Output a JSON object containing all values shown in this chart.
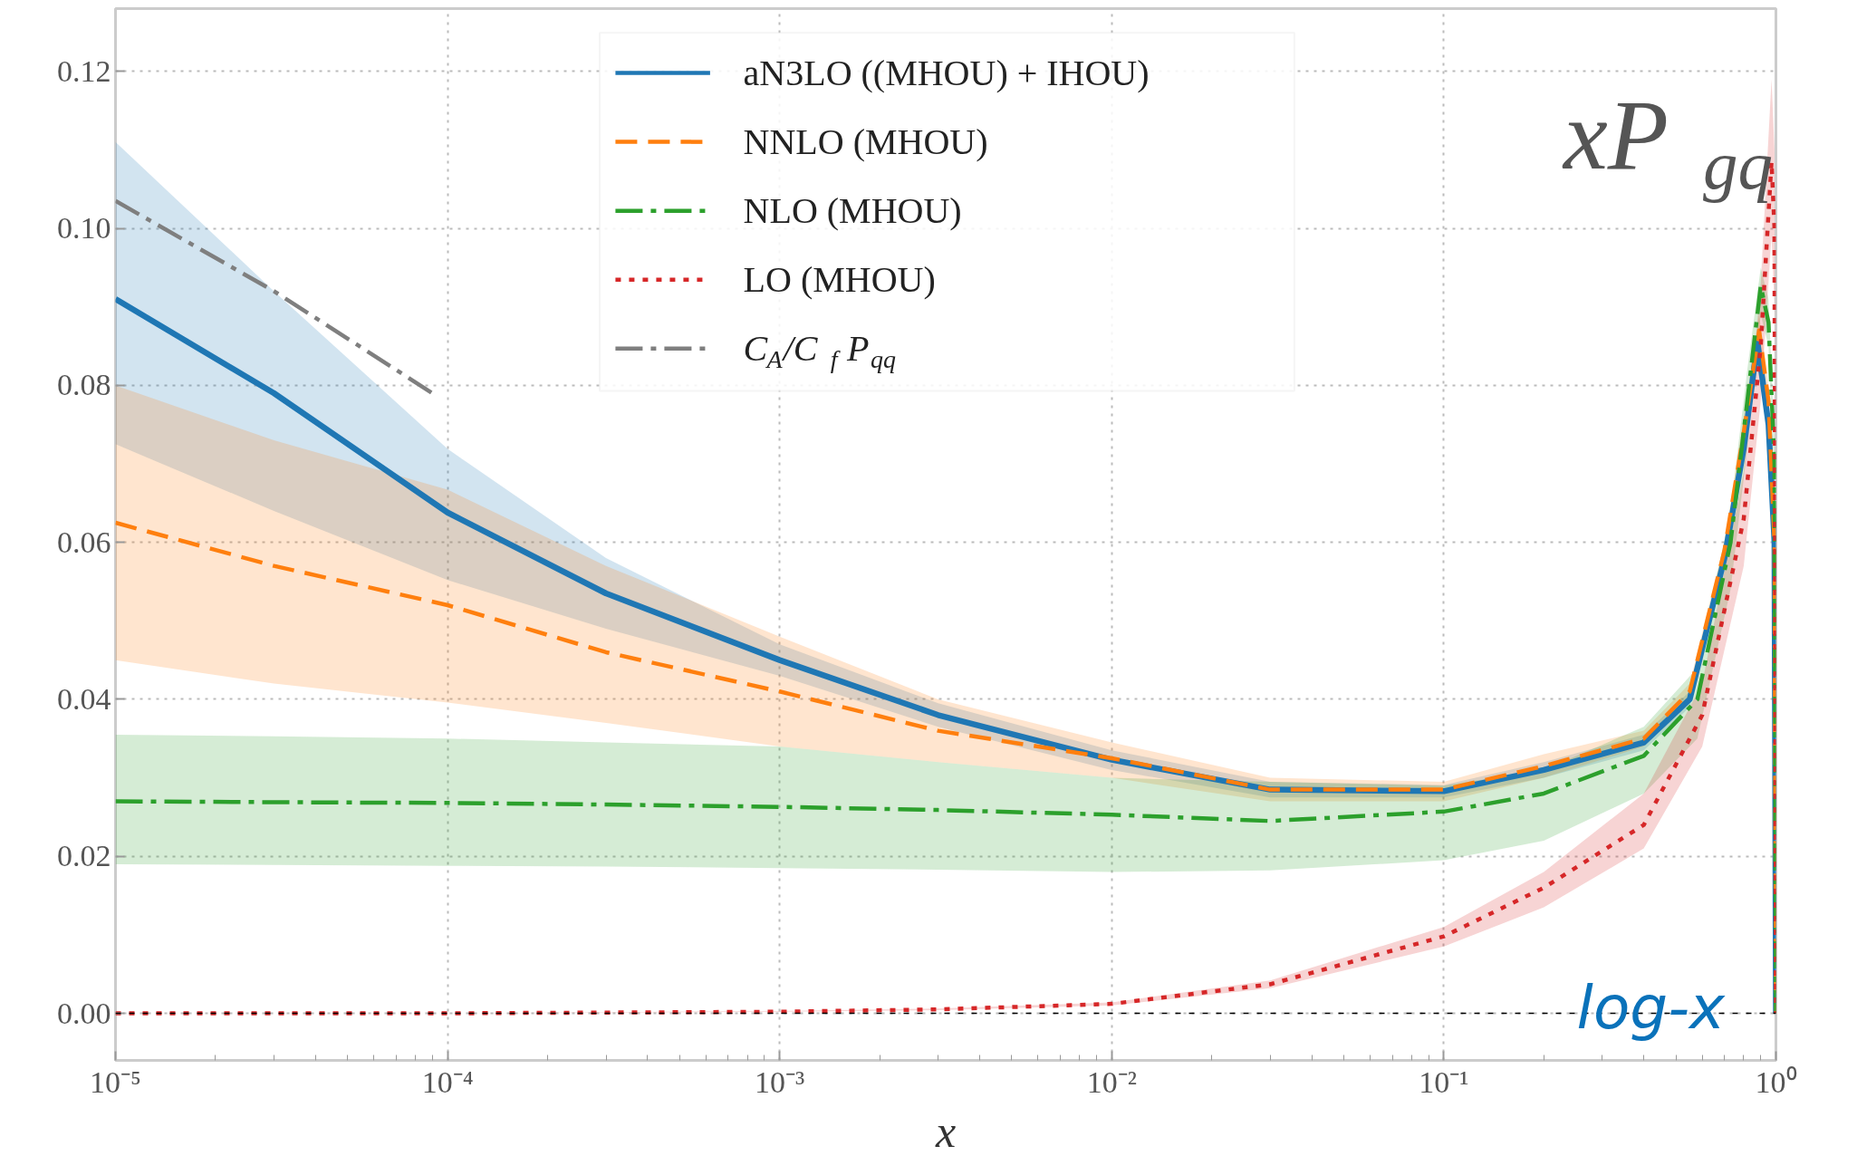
{
  "chart_data": {
    "type": "line",
    "xlabel": "x",
    "annotations": [
      "xP$_{gq}$",
      "log-x"
    ],
    "log": "x",
    "grid": true,
    "legend": "top",
    "xlim": [
      1e-05,
      1
    ],
    "ylim": [
      -0.006,
      0.128
    ],
    "xticks": [
      {
        "value": 1e-05,
        "label": "10⁻⁵"
      },
      {
        "value": 0.0001,
        "label": "10⁻⁴"
      },
      {
        "value": 0.001,
        "label": "10⁻³"
      },
      {
        "value": 0.01,
        "label": "10⁻²"
      },
      {
        "value": 0.1,
        "label": "10⁻¹"
      },
      {
        "value": 1,
        "label": "10⁰"
      }
    ],
    "yticks": [
      {
        "value": 0,
        "label": "0.00"
      },
      {
        "value": 0.02,
        "label": "0.02"
      },
      {
        "value": 0.04,
        "label": "0.04"
      },
      {
        "value": 0.06,
        "label": "0.06"
      },
      {
        "value": 0.08,
        "label": "0.08"
      },
      {
        "value": 0.1,
        "label": "0.10"
      },
      {
        "value": 0.12,
        "label": "0.12"
      }
    ],
    "ref_lines": [
      {
        "axis": "y",
        "value": 0,
        "color": "#000000",
        "line_style": "dotted"
      }
    ],
    "series": [
      {
        "name": "aN3LO ((MHOU) + IHOU)",
        "color": "#1f77b4",
        "line_style": "solid",
        "x": [
          1e-05,
          3e-05,
          0.0001,
          0.0003,
          0.001,
          0.003,
          0.01,
          0.03,
          0.1,
          0.2,
          0.4,
          0.55,
          0.7,
          0.8,
          0.88,
          0.95,
          0.99,
          1.0
        ],
        "values": [
          0.091,
          0.079,
          0.0638,
          0.0535,
          0.045,
          0.038,
          0.0323,
          0.0285,
          0.0283,
          0.031,
          0.0345,
          0.04,
          0.058,
          0.072,
          0.0855,
          0.075,
          0.06,
          0.0
        ],
        "lower": [
          0.0725,
          0.064,
          0.0552,
          0.049,
          0.043,
          0.0365,
          0.031,
          0.0275,
          0.0275,
          0.03,
          0.0335,
          0.039,
          0.057,
          0.071,
          0.084,
          0.073,
          0.058,
          0.0
        ],
        "upper": [
          0.111,
          0.092,
          0.0719,
          0.058,
          0.047,
          0.0395,
          0.0335,
          0.0295,
          0.0291,
          0.032,
          0.0355,
          0.041,
          0.059,
          0.073,
          0.087,
          0.077,
          0.062,
          0.0
        ]
      },
      {
        "name": "NNLO (MHOU)",
        "color": "#ff7f0e",
        "line_style": "dashed",
        "x": [
          1e-05,
          3e-05,
          0.0001,
          0.0003,
          0.001,
          0.003,
          0.01,
          0.03,
          0.1,
          0.2,
          0.4,
          0.55,
          0.7,
          0.8,
          0.89,
          0.95,
          0.99,
          1.0
        ],
        "values": [
          0.0625,
          0.057,
          0.052,
          0.046,
          0.041,
          0.036,
          0.0325,
          0.0285,
          0.0285,
          0.0315,
          0.035,
          0.041,
          0.059,
          0.074,
          0.087,
          0.078,
          0.06,
          0.0
        ],
        "lower": [
          0.045,
          0.042,
          0.0396,
          0.037,
          0.034,
          0.032,
          0.03,
          0.027,
          0.027,
          0.03,
          0.034,
          0.04,
          0.058,
          0.072,
          0.085,
          0.076,
          0.058,
          0.0
        ],
        "upper": [
          0.08,
          0.073,
          0.0667,
          0.057,
          0.048,
          0.04,
          0.0345,
          0.03,
          0.0295,
          0.033,
          0.036,
          0.042,
          0.06,
          0.076,
          0.089,
          0.08,
          0.062,
          0.0
        ]
      },
      {
        "name": "NLO (MHOU)",
        "color": "#2ca02c",
        "line_style": "dashdot",
        "x": [
          1e-05,
          3e-05,
          0.0001,
          0.0003,
          0.001,
          0.003,
          0.01,
          0.03,
          0.1,
          0.2,
          0.4,
          0.58,
          0.73,
          0.82,
          0.9,
          0.95,
          0.99,
          1.0
        ],
        "values": [
          0.027,
          0.0269,
          0.0268,
          0.0266,
          0.0263,
          0.0259,
          0.0253,
          0.0245,
          0.0257,
          0.028,
          0.0328,
          0.04,
          0.06,
          0.078,
          0.0927,
          0.088,
          0.07,
          0.0
        ],
        "lower": [
          0.019,
          0.0189,
          0.0188,
          0.0187,
          0.0185,
          0.0183,
          0.018,
          0.0182,
          0.0195,
          0.022,
          0.028,
          0.035,
          0.054,
          0.072,
          0.089,
          0.085,
          0.067,
          0.0
        ],
        "upper": [
          0.0355,
          0.0353,
          0.035,
          0.0345,
          0.034,
          0.032,
          0.03,
          0.0295,
          0.029,
          0.031,
          0.0365,
          0.044,
          0.064,
          0.082,
          0.095,
          0.091,
          0.073,
          0.0
        ]
      },
      {
        "name": "LO (MHOU)",
        "color": "#d62728",
        "line_style": "dotted",
        "x": [
          1e-05,
          0.0001,
          0.001,
          0.003,
          0.01,
          0.03,
          0.1,
          0.2,
          0.4,
          0.6,
          0.8,
          0.9,
          0.97,
          0.99,
          1.0
        ],
        "values": [
          0.0,
          0.0,
          0.0002,
          0.0005,
          0.0012,
          0.0037,
          0.0098,
          0.016,
          0.024,
          0.038,
          0.063,
          0.085,
          0.1085,
          0.1,
          0.0
        ],
        "lower": [
          0.0,
          0.0,
          0.0002,
          0.0004,
          0.001,
          0.0032,
          0.0085,
          0.0135,
          0.021,
          0.034,
          0.057,
          0.078,
          0.099,
          0.09,
          0.0
        ],
        "upper": [
          0.0,
          0.0,
          0.0003,
          0.0006,
          0.0014,
          0.0042,
          0.011,
          0.018,
          0.028,
          0.042,
          0.069,
          0.093,
          0.119,
          0.11,
          0.0
        ]
      },
      {
        "name": "C$_{A}$/C$_{f}$P$_{qq}$",
        "color": "#7f7f7f",
        "line_style": "dashdot",
        "x": [
          1e-05,
          3e-05,
          9e-05
        ],
        "values": [
          0.1035,
          0.092,
          0.079
        ]
      }
    ]
  }
}
